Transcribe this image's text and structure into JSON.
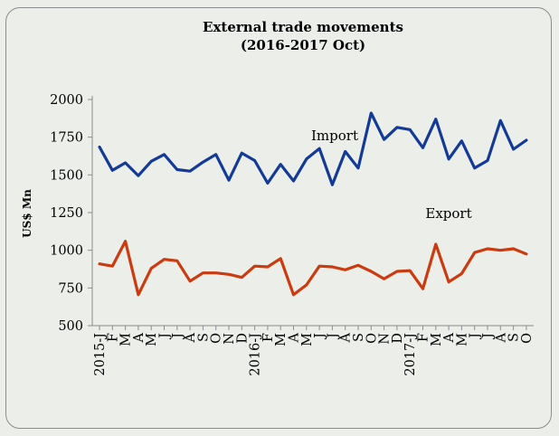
{
  "chart_data": {
    "type": "line",
    "title": "External trade movements",
    "subtitle": "(2016-2017 Oct)",
    "xlabel": "",
    "ylabel": "US$ Mn",
    "ylim": [
      500,
      2000
    ],
    "yticks": [
      500,
      750,
      1000,
      1250,
      1500,
      1750,
      2000
    ],
    "grid": false,
    "x": [
      "2015-J",
      "F",
      "M",
      "A",
      "M",
      "J",
      "J",
      "A",
      "S",
      "O",
      "N",
      "D",
      "2016-J",
      "F",
      "M",
      "A",
      "M",
      "J",
      "J",
      "A",
      "S",
      "O",
      "N",
      "D",
      "2017-J",
      "F",
      "M",
      "A",
      "M",
      "J",
      "J",
      "A",
      "S",
      "O"
    ],
    "series": [
      {
        "name": "Import",
        "color": "#133a96",
        "values": [
          1685,
          1530,
          1580,
          1495,
          1590,
          1635,
          1535,
          1525,
          1585,
          1635,
          1465,
          1645,
          1595,
          1445,
          1570,
          1460,
          1605,
          1675,
          1435,
          1655,
          1545,
          1910,
          1735,
          1815,
          1800,
          1680,
          1870,
          1605,
          1725,
          1545,
          1595,
          1860,
          1670,
          1730
        ]
      },
      {
        "name": "Export",
        "color": "#cc3a10",
        "values": [
          910,
          895,
          1060,
          705,
          880,
          940,
          930,
          795,
          850,
          850,
          840,
          820,
          895,
          890,
          945,
          705,
          770,
          895,
          890,
          870,
          900,
          860,
          810,
          860,
          865,
          745,
          1040,
          790,
          845,
          985,
          1010,
          1000,
          1010,
          975
        ]
      }
    ]
  }
}
